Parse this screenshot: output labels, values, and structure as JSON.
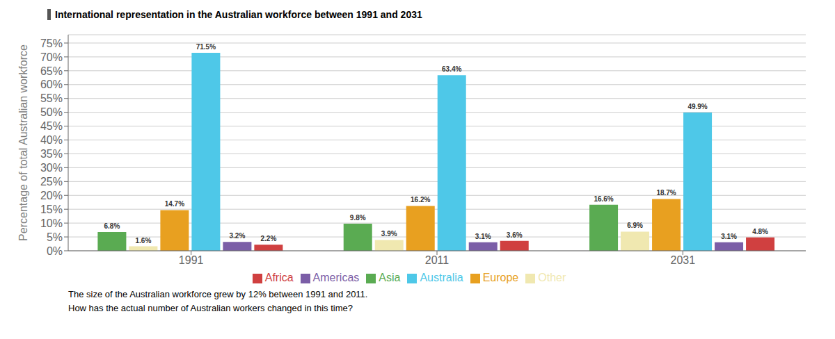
{
  "chart_data": {
    "type": "bar",
    "title": "International representation in the Australian workforce between 1991 and 2031",
    "ylabel": "Percentage of total Australian workforce",
    "annotations": [
      "The size of the Australian workforce grew by 12% between 1991 and 2011.",
      "How has the actual number of Australian workers changed in this time?"
    ],
    "categories": [
      "1991",
      "2011",
      "2031"
    ],
    "series": [
      {
        "name": "Asia",
        "color": "#5aab52",
        "values": [
          6.8,
          9.8,
          16.6
        ],
        "value_labels": [
          "6.8%",
          "9.8%",
          "16.6%"
        ]
      },
      {
        "name": "Other",
        "color": "#f0e8b0",
        "values": [
          1.6,
          3.9,
          6.9
        ],
        "value_labels": [
          "1.6%",
          "3.9%",
          "6.9%"
        ]
      },
      {
        "name": "Europe",
        "color": "#e8a020",
        "values": [
          14.7,
          16.2,
          18.7
        ],
        "value_labels": [
          "14.7%",
          "16.2%",
          "18.7%"
        ]
      },
      {
        "name": "Australia",
        "color": "#4ec8e8",
        "values": [
          71.5,
          63.4,
          49.9
        ],
        "value_labels": [
          "71.5%",
          "63.4%",
          "49.9%"
        ]
      },
      {
        "name": "Americas",
        "color": "#7b5ea7",
        "values": [
          3.2,
          3.1,
          3.1
        ],
        "value_labels": [
          "3.2%",
          "3.1%",
          "3.1%"
        ]
      },
      {
        "name": "Africa",
        "color": "#d04040",
        "values": [
          2.2,
          3.6,
          4.8
        ],
        "value_labels": [
          "2.2%",
          "3.6%",
          "4.8%"
        ]
      }
    ],
    "ylim": [
      0,
      78
    ],
    "yticks": [
      {
        "value": 0,
        "label": "0%"
      },
      {
        "value": 5,
        "label": "5%"
      },
      {
        "value": 10,
        "label": "10%"
      },
      {
        "value": 15,
        "label": "15%"
      },
      {
        "value": 20,
        "label": "20%"
      },
      {
        "value": 25,
        "label": "25%"
      },
      {
        "value": 30,
        "label": "30%"
      },
      {
        "value": 35,
        "label": "35%"
      },
      {
        "value": 40,
        "label": "40%"
      },
      {
        "value": 45,
        "label": "45%"
      },
      {
        "value": 50,
        "label": "50%"
      },
      {
        "value": 55,
        "label": "55%"
      },
      {
        "value": 60,
        "label": "60%"
      },
      {
        "value": 65,
        "label": "65%"
      },
      {
        "value": 70,
        "label": "70%"
      },
      {
        "value": 75,
        "label": "75%"
      }
    ],
    "grid": true,
    "legend": "bottom",
    "data_labels": true
  }
}
